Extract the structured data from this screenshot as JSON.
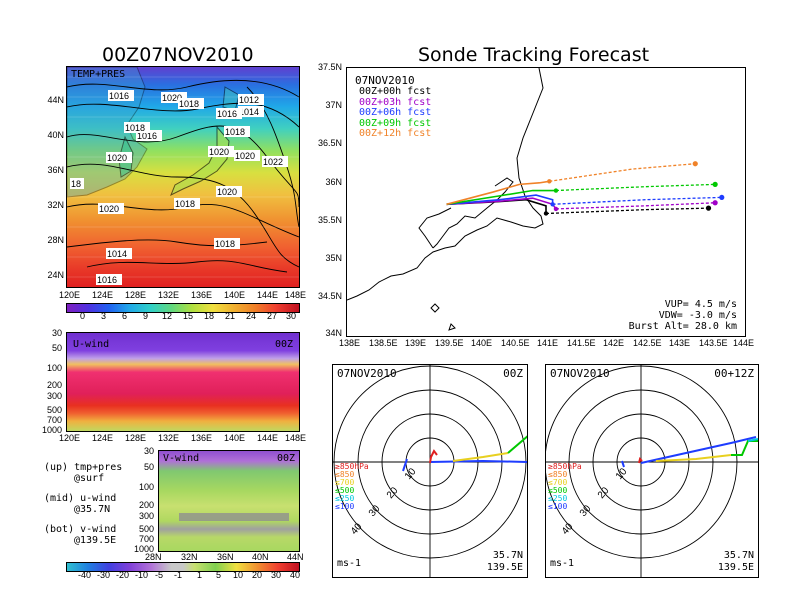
{
  "left_title": "00Z07NOV2010",
  "right_title": "Sonde Tracking Forecast",
  "map_panel": {
    "label": "TEMP+PRES",
    "lat_ticks": [
      "44N",
      "40N",
      "36N",
      "32N",
      "28N",
      "24N"
    ],
    "lon_ticks": [
      "120E",
      "124E",
      "128E",
      "132E",
      "136E",
      "140E",
      "144E",
      "148E"
    ],
    "isobar_labels": [
      "1016",
      "1020",
      "1018",
      "1012",
      "1014",
      "1016",
      "1018",
      "1016",
      "1018",
      "1020",
      "1020",
      "1022",
      "18",
      "1020",
      "1020",
      "1020",
      "1018",
      "1018",
      "1014",
      "1016"
    ],
    "colorbar_ticks": [
      "0",
      "3",
      "6",
      "9",
      "12",
      "15",
      "18",
      "21",
      "24",
      "27",
      "30"
    ]
  },
  "u_panel": {
    "label": "U-wind",
    "time": "00Z",
    "pres_ticks": [
      "30",
      "50",
      "100",
      "200",
      "300",
      "500",
      "700",
      "1000"
    ],
    "lon_ticks": [
      "120E",
      "124E",
      "128E",
      "132E",
      "136E",
      "140E",
      "144E",
      "148E"
    ]
  },
  "v_panel": {
    "label": "V-wind",
    "time": "00Z",
    "pres_ticks": [
      "30",
      "50",
      "100",
      "200",
      "300",
      "500",
      "700",
      "1000"
    ],
    "lat_ticks": [
      "28N",
      "32N",
      "36N",
      "40N",
      "44N"
    ],
    "colorbar_ticks": [
      "-40",
      "-30",
      "-20",
      "-10",
      "-5",
      "-1",
      "1",
      "5",
      "10",
      "20",
      "30",
      "40"
    ]
  },
  "notes": [
    {
      "text": "(up) tmp+pres",
      "sub": "@surf"
    },
    {
      "text": "(mid) u-wind",
      "sub": "@35.7N"
    },
    {
      "text": "(bot) v-wind",
      "sub": "@139.5E"
    }
  ],
  "track_panel": {
    "date": "07NOV2010",
    "legend": [
      {
        "label": "00Z+00h fcst",
        "color": "#000000"
      },
      {
        "label": "00Z+03h fcst",
        "color": "#a000c8"
      },
      {
        "label": "00Z+06h fcst",
        "color": "#1e3cff"
      },
      {
        "label": "00Z+09h fcst",
        "color": "#00c800"
      },
      {
        "label": "00Z+12h fcst",
        "color": "#f08228"
      }
    ],
    "lat_ticks": [
      "37.5N",
      "37N",
      "36.5N",
      "36N",
      "35.5N",
      "35N",
      "34.5N",
      "34N"
    ],
    "lon_ticks": [
      "138E",
      "138.5E",
      "139E",
      "139.5E",
      "140E",
      "140.5E",
      "141E",
      "141.5E",
      "142E",
      "142.5E",
      "143E",
      "143.5E",
      "144E"
    ],
    "info": [
      "VUP= 4.5 m/s",
      "VDW= -3.0 m/s",
      "Burst Alt= 28.0 km"
    ]
  },
  "chart_data": {
    "type": "line",
    "title": "Sonde Tracking Forecast",
    "xlim": [
      138,
      144
    ],
    "ylim": [
      34,
      37.5
    ],
    "series": [
      {
        "name": "00Z+00h fcst",
        "color": "#000000",
        "ascent": [
          [
            139.5,
            35.72
          ],
          [
            140.2,
            35.75
          ],
          [
            140.7,
            35.78
          ],
          [
            141.0,
            35.7
          ],
          [
            141.0,
            35.6
          ]
        ],
        "float": [
          [
            141.0,
            35.6
          ],
          [
            142.5,
            35.65
          ],
          [
            143.45,
            35.67
          ]
        ]
      },
      {
        "name": "00Z+03h fcst",
        "color": "#a000c8",
        "ascent": [
          [
            139.5,
            35.72
          ],
          [
            140.3,
            35.76
          ],
          [
            140.8,
            35.8
          ],
          [
            141.1,
            35.72
          ],
          [
            141.15,
            35.66
          ]
        ],
        "float": [
          [
            141.15,
            35.66
          ],
          [
            142.5,
            35.7
          ],
          [
            143.55,
            35.74
          ]
        ]
      },
      {
        "name": "00Z+06h fcst",
        "color": "#1e3cff",
        "ascent": [
          [
            139.5,
            35.72
          ],
          [
            140.3,
            35.78
          ],
          [
            140.85,
            35.84
          ],
          [
            141.1,
            35.78
          ],
          [
            141.1,
            35.72
          ]
        ],
        "float": [
          [
            141.1,
            35.72
          ],
          [
            142.5,
            35.78
          ],
          [
            143.65,
            35.81
          ]
        ]
      },
      {
        "name": "00Z+09h fcst",
        "color": "#00c800",
        "ascent": [
          [
            139.5,
            35.72
          ],
          [
            140.3,
            35.83
          ],
          [
            140.8,
            35.9
          ],
          [
            141.1,
            35.9
          ],
          [
            141.15,
            35.9
          ]
        ],
        "float": [
          [
            141.15,
            35.9
          ],
          [
            142.5,
            35.95
          ],
          [
            143.55,
            35.98
          ]
        ]
      },
      {
        "name": "00Z+12h fcst",
        "color": "#f08228",
        "ascent": [
          [
            139.5,
            35.72
          ],
          [
            140.2,
            35.88
          ],
          [
            140.6,
            35.98
          ],
          [
            140.9,
            36.0
          ],
          [
            141.05,
            36.02
          ]
        ],
        "float": [
          [
            141.05,
            36.02
          ],
          [
            142.3,
            36.18
          ],
          [
            143.25,
            36.25
          ]
        ]
      }
    ]
  },
  "hodographs": [
    {
      "date": "07NOV2010",
      "time": "00Z",
      "lat": "35.7N",
      "lon": "139.5E",
      "units": "ms-1",
      "ring_labels": [
        "10",
        "20",
        "30",
        "40"
      ],
      "levels": [
        {
          "label": "≥850hPa",
          "color": "#e02020"
        },
        {
          "label": "≤850",
          "color": "#f08228"
        },
        {
          "label": "≤700",
          "color": "#e8d020"
        },
        {
          "label": "≤500",
          "color": "#00c800"
        },
        {
          "label": "≤250",
          "color": "#00c8e0"
        },
        {
          "label": "≤100",
          "color": "#1e3cff"
        }
      ]
    },
    {
      "date": "07NOV2010",
      "time": "00+12Z",
      "lat": "35.7N",
      "lon": "139.5E",
      "units": "ms-1",
      "ring_labels": [
        "10",
        "20",
        "30",
        "40"
      ],
      "levels": [
        {
          "label": "≥850hPa",
          "color": "#e02020"
        },
        {
          "label": "≤850",
          "color": "#f08228"
        },
        {
          "label": "≤700",
          "color": "#e8d020"
        },
        {
          "label": "≤500",
          "color": "#00c800"
        },
        {
          "label": "≤250",
          "color": "#00c8e0"
        },
        {
          "label": "≤100",
          "color": "#1e3cff"
        }
      ]
    }
  ]
}
